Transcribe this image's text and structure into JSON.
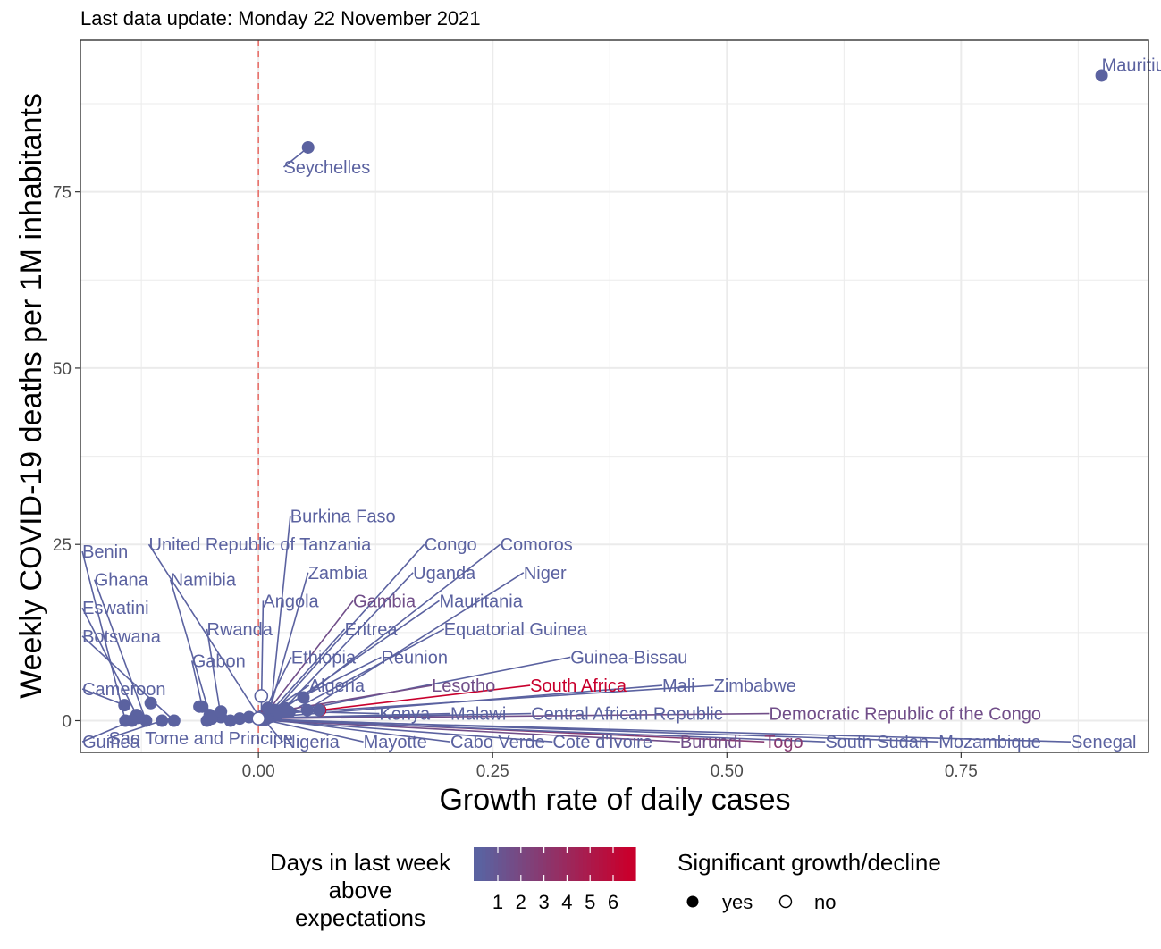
{
  "subtitle": "Last data update: Monday 22 November 2021",
  "colors": {
    "low": "#5b62a0",
    "high": "#c8002d",
    "reference_line": "#e8706a",
    "grid": "#ebebeb",
    "panel_border": "#333333"
  },
  "legend": {
    "color_title_lines": [
      "Days in last week",
      "above",
      "expectations"
    ],
    "color_ticks": [
      "1",
      "2",
      "3",
      "4",
      "5",
      "6"
    ],
    "shape_title": "Significant growth/decline",
    "shape_items": [
      {
        "label": "yes",
        "filled": true
      },
      {
        "label": "no",
        "filled": false
      }
    ]
  },
  "chart_data": {
    "type": "scatter",
    "xlabel": "Growth rate of daily cases",
    "ylabel": "Weekly COVID-19 deaths per 1M inhabitants",
    "xlim": [
      -0.19,
      0.95
    ],
    "ylim": [
      -4.5,
      96.5
    ],
    "x_ticks": [
      0.0,
      0.25,
      0.5,
      0.75
    ],
    "x_tick_labels": [
      "0.00",
      "0.25",
      "0.50",
      "0.75"
    ],
    "y_ticks": [
      0,
      25,
      50,
      75
    ],
    "y_tick_labels": [
      "0",
      "25",
      "50",
      "75"
    ],
    "grid": true,
    "reference_vline_x": 0.0,
    "points": [
      {
        "name": "Mauritius",
        "x": 0.9,
        "y": 91.5,
        "days": 1,
        "sig": true,
        "lx": 0.9,
        "ly": 93.0
      },
      {
        "name": "Seychelles",
        "x": 0.053,
        "y": 81.3,
        "days": 1,
        "sig": true,
        "lx": 0.027,
        "ly": 78.5
      },
      {
        "name": "Burkina Faso",
        "x": 0.013,
        "y": 1.2,
        "days": 1,
        "sig": true,
        "lx": 0.034,
        "ly": 29.0
      },
      {
        "name": "United Republic of Tanzania",
        "x": 0.002,
        "y": 0.3,
        "days": 1,
        "sig": true,
        "lx": -0.117,
        "ly": 25.0
      },
      {
        "name": "Congo",
        "x": 0.018,
        "y": 1.5,
        "days": 1,
        "sig": true,
        "lx": 0.177,
        "ly": 25.0
      },
      {
        "name": "Comoros",
        "x": 0.048,
        "y": 3.3,
        "days": 1,
        "sig": true,
        "lx": 0.258,
        "ly": 25.0
      },
      {
        "name": "Benin",
        "x": -0.142,
        "y": 0.0,
        "days": 1,
        "sig": true,
        "lx": -0.188,
        "ly": 24.0
      },
      {
        "name": "Zambia",
        "x": 0.011,
        "y": 1.0,
        "days": 1,
        "sig": true,
        "lx": 0.053,
        "ly": 21.0
      },
      {
        "name": "Uganda",
        "x": 0.028,
        "y": 1.8,
        "days": 1,
        "sig": true,
        "lx": 0.165,
        "ly": 21.0
      },
      {
        "name": "Niger",
        "x": 0.052,
        "y": 1.5,
        "days": 1,
        "sig": true,
        "lx": 0.283,
        "ly": 21.0
      },
      {
        "name": "Ghana",
        "x": -0.12,
        "y": 0.0,
        "days": 1,
        "sig": true,
        "lx": -0.175,
        "ly": 20.0
      },
      {
        "name": "Namibia",
        "x": -0.052,
        "y": 0.8,
        "days": 1,
        "sig": true,
        "lx": -0.094,
        "ly": 20.0
      },
      {
        "name": "Angola",
        "x": 0.003,
        "y": 0.6,
        "days": 1,
        "sig": true,
        "lx": 0.005,
        "ly": 17.0
      },
      {
        "name": "Gambia",
        "x": 0.007,
        "y": 0.8,
        "days": 2,
        "sig": true,
        "lx": 0.101,
        "ly": 17.0
      },
      {
        "name": "Mauritania",
        "x": 0.016,
        "y": 0.7,
        "days": 1,
        "sig": true,
        "lx": 0.193,
        "ly": 17.0
      },
      {
        "name": "Eswatini",
        "x": -0.13,
        "y": 0.8,
        "days": 1,
        "sig": true,
        "lx": -0.188,
        "ly": 16.0
      },
      {
        "name": "Rwanda",
        "x": -0.04,
        "y": 0.5,
        "days": 1,
        "sig": true,
        "lx": -0.055,
        "ly": 13.0
      },
      {
        "name": "Eritrea",
        "x": 0.006,
        "y": 0.2,
        "days": 1,
        "sig": true,
        "lx": 0.092,
        "ly": 13.0
      },
      {
        "name": "Equatorial Guinea",
        "x": 0.033,
        "y": 1.2,
        "days": 1,
        "sig": true,
        "lx": 0.198,
        "ly": 13.0
      },
      {
        "name": "Botswana",
        "x": -0.09,
        "y": 0.0,
        "days": 1,
        "sig": true,
        "lx": -0.188,
        "ly": 12.0
      },
      {
        "name": "Gabon",
        "x": -0.06,
        "y": 2.0,
        "days": 1,
        "sig": true,
        "lx": -0.071,
        "ly": 8.5
      },
      {
        "name": "Ethiopia",
        "x": 0.003,
        "y": 0.4,
        "days": 1,
        "sig": true,
        "lx": 0.035,
        "ly": 9.0
      },
      {
        "name": "Reunion",
        "x": 0.015,
        "y": 1.3,
        "days": 1,
        "sig": true,
        "lx": 0.131,
        "ly": 9.0
      },
      {
        "name": "Guinea-Bissau",
        "x": 0.021,
        "y": 0.9,
        "days": 1,
        "sig": true,
        "lx": 0.333,
        "ly": 9.0
      },
      {
        "name": "Cameroon",
        "x": -0.143,
        "y": 2.2,
        "days": 1,
        "sig": true,
        "lx": -0.188,
        "ly": 4.5
      },
      {
        "name": "Algeria",
        "x": 0.006,
        "y": 0.8,
        "days": 1,
        "sig": true,
        "lx": 0.054,
        "ly": 5.0
      },
      {
        "name": "Lesotho",
        "x": 0.009,
        "y": 1.1,
        "days": 2,
        "sig": true,
        "lx": 0.185,
        "ly": 5.0
      },
      {
        "name": "South Africa",
        "x": 0.066,
        "y": 1.5,
        "days": 6,
        "sig": true,
        "lx": 0.29,
        "ly": 5.0
      },
      {
        "name": "Mali",
        "x": 0.012,
        "y": 0.5,
        "days": 1,
        "sig": true,
        "lx": 0.431,
        "ly": 5.0
      },
      {
        "name": "Zimbabwe",
        "x": 0.02,
        "y": 1.0,
        "days": 1,
        "sig": true,
        "lx": 0.486,
        "ly": 5.0
      },
      {
        "name": "Kenya",
        "x": 0.03,
        "y": 1.3,
        "days": 1,
        "sig": true,
        "lx": 0.129,
        "ly": 1.0
      },
      {
        "name": "Malawi",
        "x": 0.01,
        "y": 0.4,
        "days": 1,
        "sig": true,
        "lx": 0.205,
        "ly": 1.0
      },
      {
        "name": "Central African Republic",
        "x": 0.008,
        "y": 0.3,
        "days": 1,
        "sig": true,
        "lx": 0.291,
        "ly": 1.0
      },
      {
        "name": "Democratic Republic of the Congo",
        "x": 0.004,
        "y": 0.3,
        "days": 2,
        "sig": true,
        "lx": 0.545,
        "ly": 1.0
      },
      {
        "name": "Guinea",
        "x": -0.128,
        "y": 0.4,
        "days": 1,
        "sig": true,
        "lx": -0.188,
        "ly": -3.0
      },
      {
        "name": "Sao Tome and Principe",
        "x": -0.103,
        "y": 0.0,
        "days": 1,
        "sig": true,
        "lx": -0.16,
        "ly": -2.5
      },
      {
        "name": "Nigeria",
        "x": 0.006,
        "y": 0.1,
        "days": 1,
        "sig": true,
        "lx": 0.026,
        "ly": -3.0
      },
      {
        "name": "Mayotte",
        "x": 0.004,
        "y": 0.2,
        "days": 1,
        "sig": true,
        "lx": 0.112,
        "ly": -3.0
      },
      {
        "name": "Cabo Verde",
        "x": 0.005,
        "y": 0.3,
        "days": 1,
        "sig": true,
        "lx": 0.205,
        "ly": -3.0
      },
      {
        "name": "Cote d'Ivoire",
        "x": 0.004,
        "y": 0.1,
        "days": 1,
        "sig": true,
        "lx": 0.314,
        "ly": -3.0
      },
      {
        "name": "Burundi",
        "x": 0.005,
        "y": 0.1,
        "days": 2,
        "sig": true,
        "lx": 0.45,
        "ly": -3.0
      },
      {
        "name": "Togo",
        "x": 0.007,
        "y": 0.2,
        "days": 3,
        "sig": true,
        "lx": 0.54,
        "ly": -3.0
      },
      {
        "name": "South Sudan",
        "x": 0.003,
        "y": 0.1,
        "days": 1,
        "sig": true,
        "lx": 0.605,
        "ly": -3.0
      },
      {
        "name": "Mozambique",
        "x": 0.008,
        "y": 0.2,
        "days": 1,
        "sig": true,
        "lx": 0.726,
        "ly": -3.0
      },
      {
        "name": "Senegal",
        "x": 0.006,
        "y": 0.1,
        "days": 1,
        "sig": true,
        "lx": 0.867,
        "ly": -3.0
      },
      {
        "name": "",
        "x": -0.135,
        "y": 0.0,
        "days": 1,
        "sig": true
      },
      {
        "name": "",
        "x": -0.115,
        "y": 2.5,
        "days": 1,
        "sig": true
      },
      {
        "name": "",
        "x": -0.063,
        "y": 2.0,
        "days": 1,
        "sig": true
      },
      {
        "name": "",
        "x": -0.055,
        "y": 0.0,
        "days": 1,
        "sig": true
      },
      {
        "name": "",
        "x": -0.05,
        "y": 0.3,
        "days": 1,
        "sig": true
      },
      {
        "name": "",
        "x": -0.04,
        "y": 1.3,
        "days": 1,
        "sig": true
      },
      {
        "name": "",
        "x": -0.03,
        "y": 0.0,
        "days": 1,
        "sig": true
      },
      {
        "name": "",
        "x": -0.02,
        "y": 0.3,
        "days": 1,
        "sig": true
      },
      {
        "name": "",
        "x": -0.01,
        "y": 0.5,
        "days": 1,
        "sig": true
      },
      {
        "name": "",
        "x": 0.0,
        "y": 0.3,
        "days": 1,
        "sig": false
      },
      {
        "name": "",
        "x": 0.003,
        "y": 3.5,
        "days": 1,
        "sig": false
      },
      {
        "name": "",
        "x": 0.01,
        "y": 1.8,
        "days": 1,
        "sig": true
      },
      {
        "name": "",
        "x": 0.032,
        "y": 1.3,
        "days": 1,
        "sig": true
      },
      {
        "name": "",
        "x": 0.065,
        "y": 1.5,
        "days": 1,
        "sig": true
      }
    ]
  }
}
